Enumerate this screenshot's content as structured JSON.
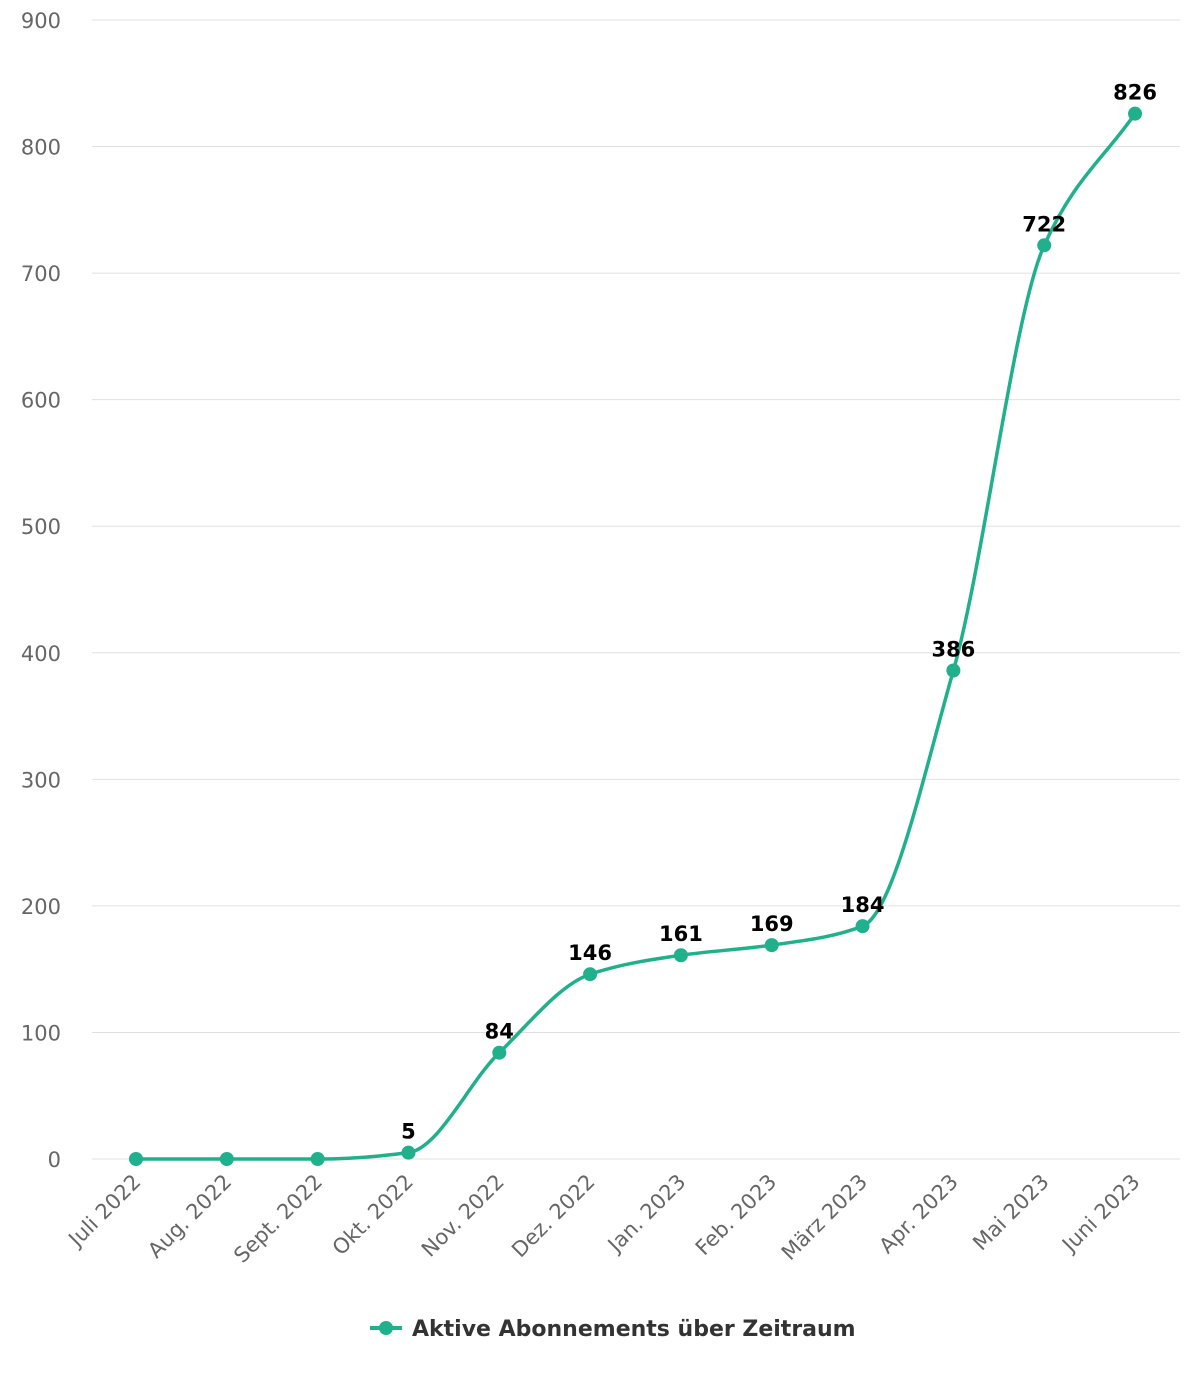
{
  "chart_data": {
    "type": "line",
    "categories": [
      "Juli 2022",
      "Aug. 2022",
      "Sept. 2022",
      "Okt. 2022",
      "Nov. 2022",
      "Dez. 2022",
      "Jan. 2023",
      "Feb. 2023",
      "März 2023",
      "Apr. 2023",
      "Mai 2023",
      "Juni 2023"
    ],
    "series": [
      {
        "name": "Aktive Abonnements über Zeitraum",
        "values": [
          0,
          0,
          0,
          5,
          84,
          146,
          161,
          169,
          184,
          386,
          722,
          826
        ],
        "data_labels": [
          "",
          "",
          "",
          "5",
          "84",
          "146",
          "161",
          "169",
          "184",
          "386",
          "722",
          "826"
        ],
        "color": "#20b08c"
      }
    ],
    "ylim": [
      0,
      900
    ],
    "yticks": [
      "0",
      "100",
      "200",
      "300",
      "400",
      "500",
      "600",
      "700",
      "800",
      "900"
    ],
    "grid": true,
    "legend": "bottom-center",
    "title": "",
    "xlabel": "",
    "ylabel": ""
  }
}
